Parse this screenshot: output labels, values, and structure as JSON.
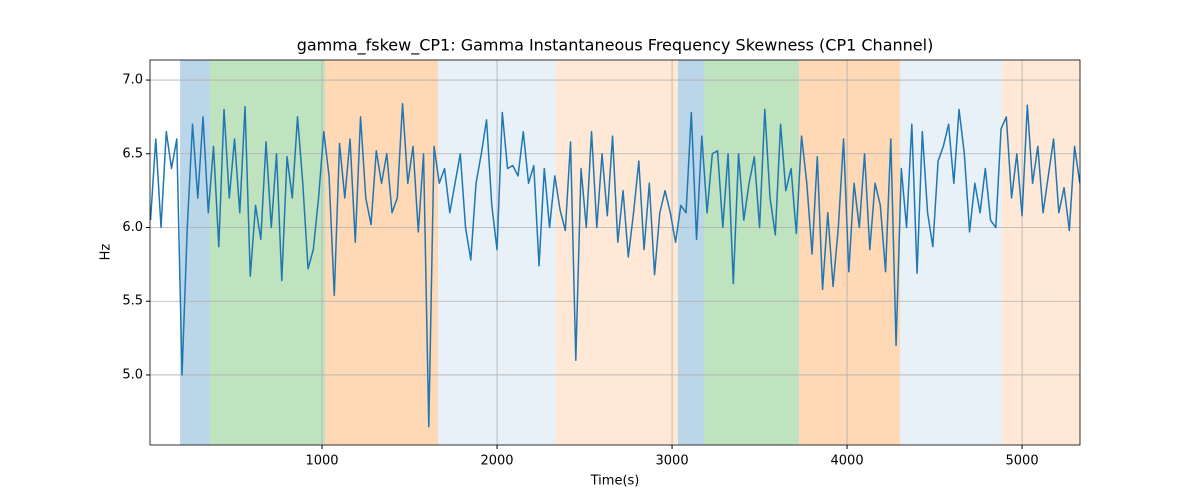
{
  "chart_data": {
    "type": "line",
    "title": "gamma_fskew_CP1: Gamma Instantaneous Frequency Skewness (CP1 Channel)",
    "xlabel": "Time(s)",
    "ylabel": "Hz",
    "grid": true,
    "xlim": [
      17,
      5331
    ],
    "ylim": [
      4.525,
      7.136
    ],
    "xticks": [
      1000,
      2000,
      3000,
      4000,
      5000
    ],
    "yticks": [
      {
        "value": 5,
        "label": "5.0"
      },
      5.5,
      {
        "value": 6,
        "label": "6.0"
      },
      6.5,
      {
        "value": 7,
        "label": "7.0"
      }
    ],
    "spans": [
      {
        "start": 189,
        "end": 360,
        "color": "#1f77b4",
        "alpha": 0.3
      },
      {
        "start": 360,
        "end": 1017,
        "color": "#2ca02c",
        "alpha": 0.3
      },
      {
        "start": 1017,
        "end": 1663,
        "color": "#ff7f0e",
        "alpha": 0.3
      },
      {
        "start": 1663,
        "end": 2337,
        "color": "#1f77b4",
        "alpha": 0.1
      },
      {
        "start": 2337,
        "end": 3034,
        "color": "#ff7f0e",
        "alpha": 0.17
      },
      {
        "start": 3034,
        "end": 3183,
        "color": "#1f77b4",
        "alpha": 0.3
      },
      {
        "start": 3183,
        "end": 3726,
        "color": "#2ca02c",
        "alpha": 0.3
      },
      {
        "start": 3726,
        "end": 4303,
        "color": "#ff7f0e",
        "alpha": 0.3
      },
      {
        "start": 4303,
        "end": 4886,
        "color": "#1f77b4",
        "alpha": 0.1
      },
      {
        "start": 4886,
        "end": 5331,
        "color": "#ff7f0e",
        "alpha": 0.17
      }
    ],
    "series": [
      {
        "color": "#1f77b4",
        "x": [
          20,
          50,
          80,
          110,
          140,
          170,
          200,
          230,
          260,
          290,
          320,
          350,
          380,
          410,
          440,
          470,
          500,
          530,
          560,
          590,
          620,
          650,
          680,
          710,
          740,
          770,
          800,
          830,
          860,
          890,
          920,
          950,
          980,
          1010,
          1040,
          1070,
          1100,
          1130,
          1160,
          1190,
          1220,
          1250,
          1280,
          1310,
          1340,
          1370,
          1400,
          1430,
          1460,
          1490,
          1520,
          1550,
          1580,
          1610,
          1640,
          1670,
          1700,
          1730,
          1760,
          1790,
          1820,
          1850,
          1880,
          1910,
          1940,
          1970,
          2000,
          2030,
          2060,
          2090,
          2120,
          2150,
          2180,
          2210,
          2240,
          2270,
          2300,
          2330,
          2360,
          2390,
          2420,
          2450,
          2480,
          2510,
          2540,
          2570,
          2600,
          2630,
          2660,
          2690,
          2720,
          2750,
          2780,
          2810,
          2840,
          2870,
          2900,
          2930,
          2960,
          2990,
          3020,
          3050,
          3080,
          3110,
          3140,
          3170,
          3200,
          3230,
          3260,
          3290,
          3320,
          3350,
          3380,
          3410,
          3440,
          3470,
          3500,
          3530,
          3560,
          3590,
          3620,
          3650,
          3680,
          3710,
          3740,
          3770,
          3800,
          3830,
          3860,
          3890,
          3920,
          3950,
          3980,
          4010,
          4040,
          4070,
          4100,
          4130,
          4160,
          4190,
          4220,
          4250,
          4280,
          4310,
          4340,
          4370,
          4400,
          4430,
          4460,
          4490,
          4520,
          4550,
          4580,
          4610,
          4640,
          4670,
          4700,
          4730,
          4760,
          4790,
          4820,
          4850,
          4880,
          4910,
          4940,
          4970,
          5000,
          5030,
          5060,
          5090,
          5120,
          5150,
          5180,
          5210,
          5240,
          5270,
          5300,
          5330
        ],
        "values": [
          6.05,
          6.6,
          6.0,
          6.65,
          6.4,
          6.6,
          5.0,
          6.0,
          6.7,
          6.2,
          6.75,
          6.1,
          6.55,
          5.87,
          6.8,
          6.2,
          6.6,
          6.1,
          6.82,
          5.67,
          6.15,
          5.92,
          6.58,
          6.0,
          6.5,
          5.64,
          6.48,
          6.2,
          6.75,
          6.3,
          5.72,
          5.85,
          6.2,
          6.65,
          6.35,
          5.54,
          6.57,
          6.2,
          6.6,
          5.9,
          6.75,
          6.2,
          6.02,
          6.52,
          6.3,
          6.5,
          6.1,
          6.2,
          6.84,
          6.3,
          6.55,
          5.97,
          6.5,
          4.65,
          6.55,
          6.3,
          6.4,
          6.1,
          6.3,
          6.5,
          6.0,
          5.78,
          6.3,
          6.5,
          6.73,
          6.15,
          5.85,
          6.78,
          6.4,
          6.42,
          6.35,
          6.65,
          6.3,
          6.42,
          5.74,
          6.4,
          6.0,
          6.35,
          6.12,
          5.98,
          6.58,
          5.1,
          6.4,
          6.0,
          6.65,
          6.0,
          6.5,
          6.08,
          6.62,
          5.9,
          6.25,
          5.8,
          6.1,
          6.45,
          5.85,
          6.3,
          5.68,
          6.1,
          6.25,
          6.1,
          5.9,
          6.15,
          6.1,
          6.78,
          5.92,
          6.62,
          6.1,
          6.5,
          6.52,
          6.0,
          6.5,
          5.62,
          6.5,
          6.05,
          6.3,
          6.48,
          6.0,
          6.8,
          6.2,
          5.95,
          6.7,
          6.25,
          6.4,
          5.96,
          6.62,
          6.3,
          5.82,
          6.48,
          5.58,
          6.1,
          5.6,
          6.0,
          6.6,
          5.7,
          6.3,
          6.0,
          6.5,
          5.85,
          6.3,
          6.15,
          5.7,
          6.6,
          5.2,
          6.4,
          6.0,
          6.7,
          5.69,
          6.65,
          6.1,
          5.87,
          6.45,
          6.55,
          6.7,
          6.3,
          6.8,
          6.5,
          5.97,
          6.3,
          6.1,
          6.4,
          6.05,
          6.0,
          6.67,
          6.75,
          6.2,
          6.5,
          6.08,
          6.83,
          6.3,
          6.55,
          6.1,
          6.35,
          6.6,
          6.1,
          6.27,
          5.98,
          6.55,
          6.3
        ]
      }
    ]
  }
}
